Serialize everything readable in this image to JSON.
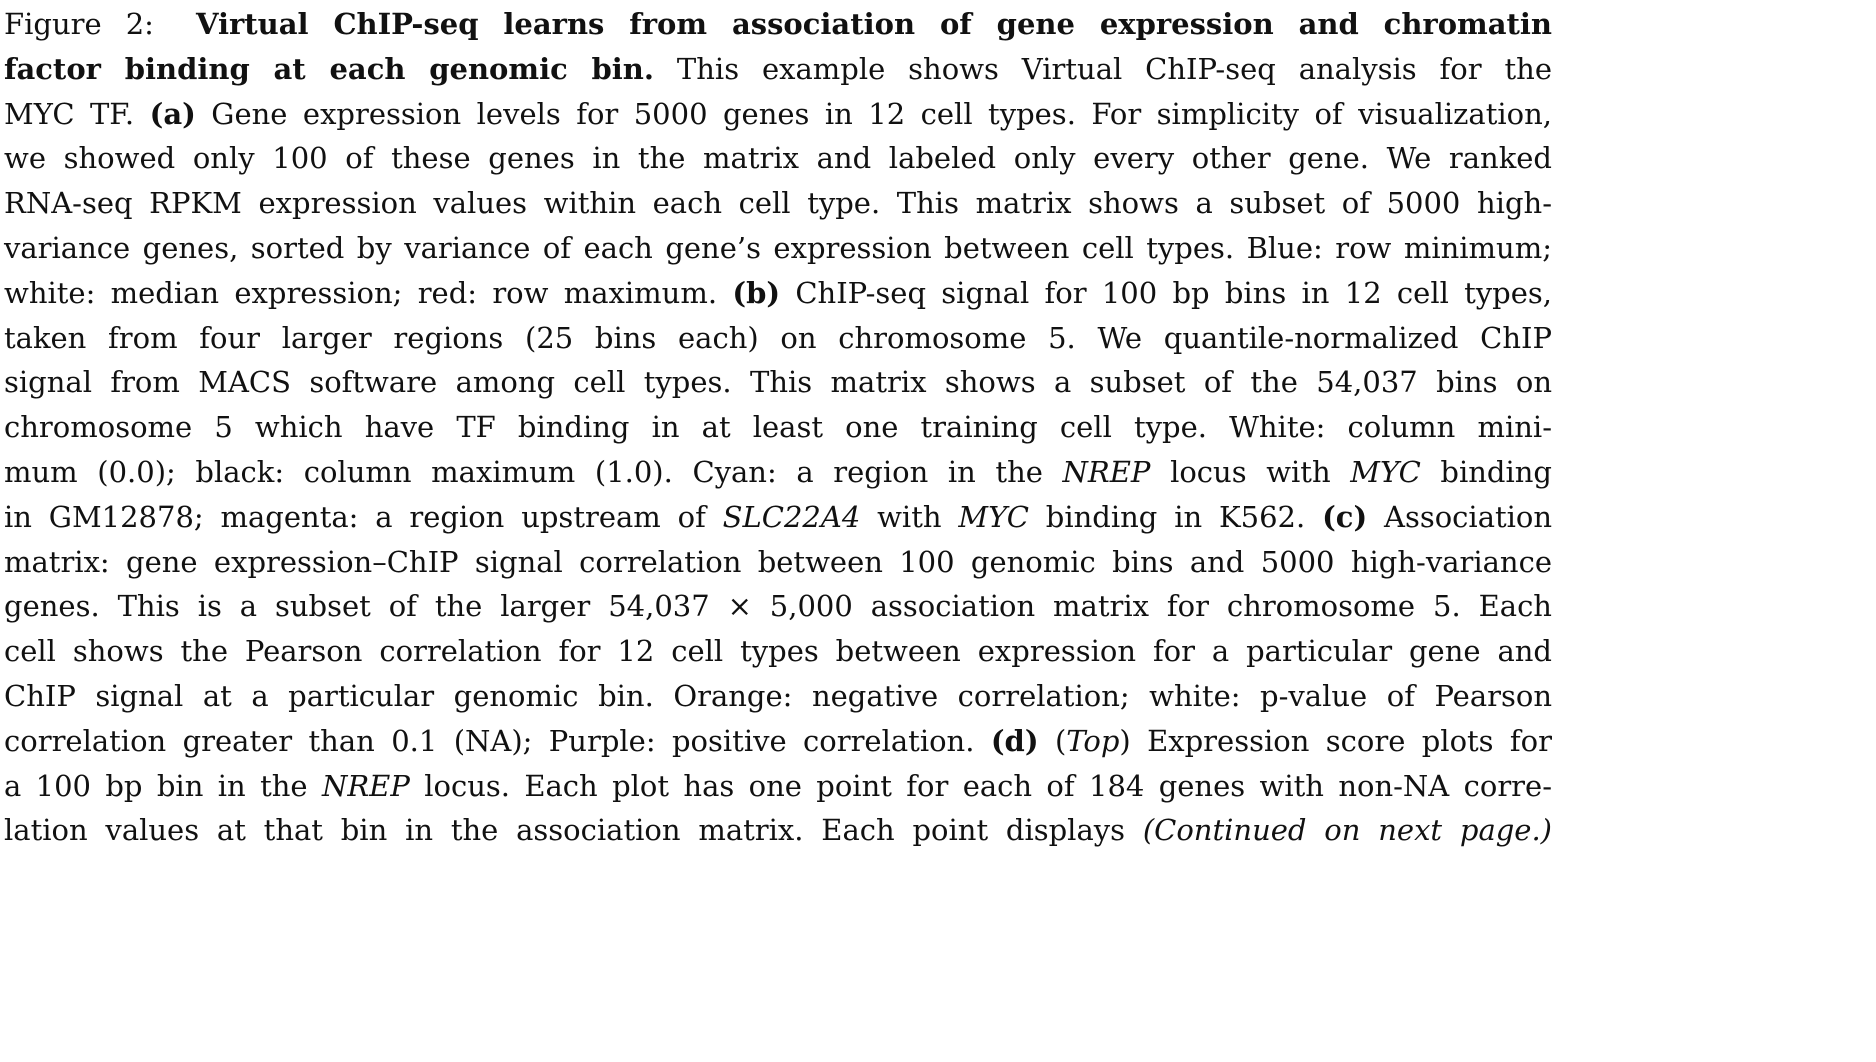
{
  "caption": {
    "figure_label": "Figure 2:",
    "title_line1": "Virtual ChIP-seq learns from association of gene expression and chromatin",
    "title_line2": "factor binding at each genomic bin.",
    "l2_rest": "This example shows Virtual ChIP-seq analysis for the",
    "l3_a": "MYC TF.",
    "l3_b": "(a)",
    "l3_c": "Gene expression levels for 5000 genes in 12 cell types. For simplicity of visualization,",
    "l4": "we showed only 100 of these genes in the matrix and labeled only every other gene. We ranked",
    "l5": "RNA-seq RPKM expression values within each cell type. This matrix shows a subset of 5000 high-",
    "l6": "variance genes, sorted by variance of each gene’s expression between cell types. Blue: row minimum;",
    "l7_a": "white: median expression; red: row maximum.",
    "l7_b": "(b)",
    "l7_c": "ChIP-seq signal for 100 bp bins in 12 cell types,",
    "l8": "taken from four larger regions (25 bins each) on chromosome 5. We quantile-normalized ChIP",
    "l9": "signal from MACS software among cell types. This matrix shows a subset of the 54,037 bins on",
    "l10": "chromosome 5 which have TF binding in at least one training cell type. White: column mini-",
    "l11_a": "mum (0.0); black: column maximum (1.0). Cyan: a region in the",
    "l11_b": "NREP",
    "l11_c": "locus with",
    "l11_d": "MYC",
    "l11_e": "binding",
    "l12_a": "in GM12878; magenta: a region upstream of",
    "l12_b": "SLC22A4",
    "l12_c": "with",
    "l12_d": "MYC",
    "l12_e": "binding in K562.",
    "l12_f": "(c)",
    "l12_g": "Association",
    "l13": "matrix: gene expression–ChIP signal correlation between 100 genomic bins and 5000 high-variance",
    "l14": "genes. This is a subset of the larger 54,037 × 5,000 association matrix for chromosome 5. Each",
    "l15": "cell shows the Pearson correlation for 12 cell types between expression for a particular gene and",
    "l16": "ChIP signal at a particular genomic bin. Orange: negative correlation; white: p-value of Pearson",
    "l17_a": "correlation greater than 0.1 (NA); Purple: positive correlation.",
    "l17_b": "(d)",
    "l17_c": "(",
    "l17_d": "Top",
    "l17_e": ") Expression score plots for",
    "l18_a": "a 100 bp bin in the",
    "l18_b": "NREP",
    "l18_c": "locus. Each plot has one point for each of 184 genes with non-NA corre-",
    "l19_a": "lation values at that bin in the association matrix. Each point displays",
    "l19_b": "(Continued on next page.)"
  }
}
